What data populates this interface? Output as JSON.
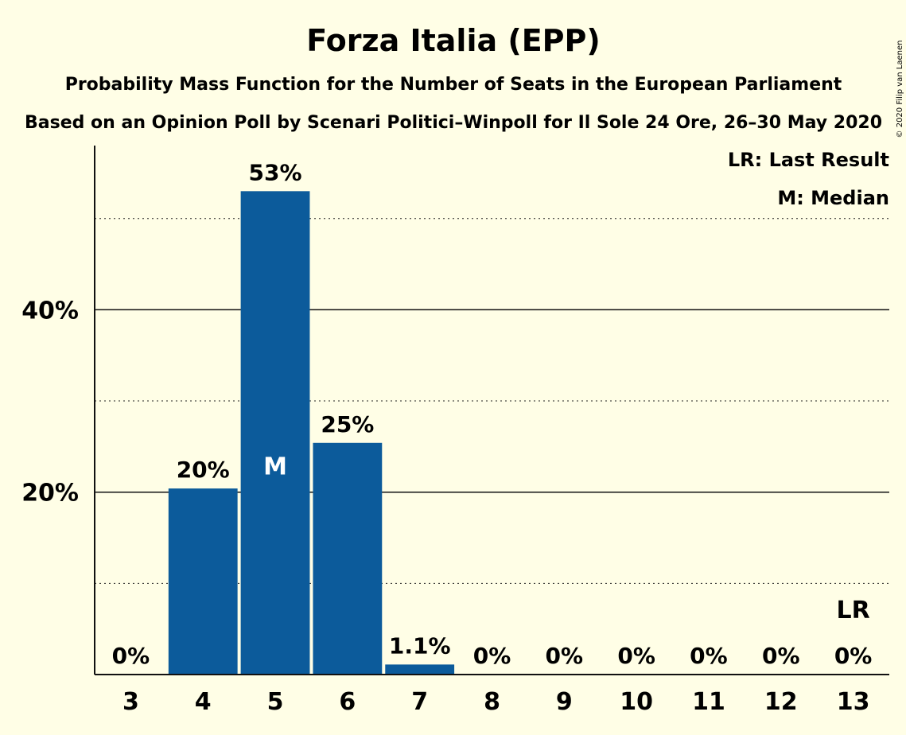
{
  "chart_data": {
    "type": "bar",
    "title": "Forza Italia (EPP)",
    "subtitle": "Probability Mass Function for the Number of Seats in the European Parliament",
    "subtitle2": "Based on an Opinion Poll by Scenari Politici–Winpoll for Il Sole 24 Ore, 26–30 May 2020",
    "copyright": "© 2020 Filip van Laenen",
    "categories": [
      "3",
      "4",
      "5",
      "6",
      "7",
      "8",
      "9",
      "10",
      "11",
      "12",
      "13"
    ],
    "values": [
      0,
      20.4,
      53.0,
      25.4,
      1.1,
      0,
      0,
      0,
      0,
      0,
      0
    ],
    "value_labels": [
      "0%",
      "20%",
      "53%",
      "25%",
      "1.1%",
      "0%",
      "0%",
      "0%",
      "0%",
      "0%",
      "0%"
    ],
    "ylim": [
      0,
      58
    ],
    "yticks": [
      {
        "value": 20,
        "label": "20%"
      },
      {
        "value": 40,
        "label": "40%"
      }
    ],
    "minor_gridlines": [
      10,
      30,
      50
    ],
    "median_category": "5",
    "median_marker": "M",
    "last_result_category": "13",
    "last_result_marker": "LR",
    "legend": [
      "LR: Last Result",
      "M: Median"
    ],
    "legend_position": "top-right",
    "bar_color": "#0C5B9B",
    "background_color": "#FFFEE6"
  }
}
